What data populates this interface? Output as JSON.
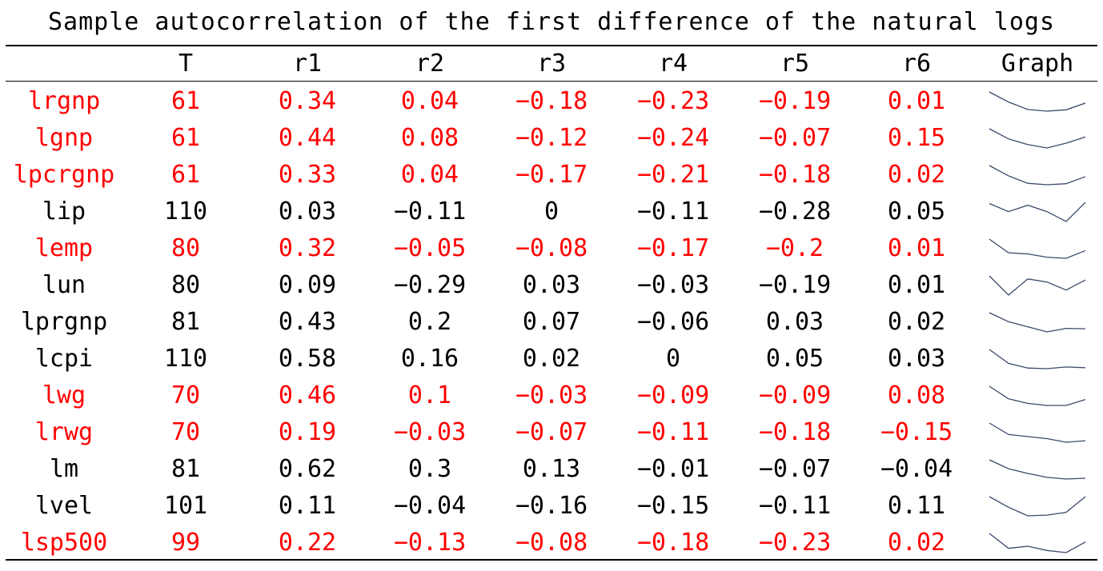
{
  "title": "Sample autocorrelation of the first difference of the natural logs",
  "colors": {
    "highlight": "#ff0000",
    "normal": "#000000",
    "sparkline": "#3a4a6b"
  },
  "columns": [
    "",
    "T",
    "r1",
    "r2",
    "r3",
    "r4",
    "r5",
    "r6",
    "Graph"
  ],
  "chart_data": {
    "type": "table",
    "title": "Sample autocorrelation of the first difference of the natural logs",
    "columns": [
      "T",
      "r1",
      "r2",
      "r3",
      "r4",
      "r5",
      "r6",
      "Graph"
    ],
    "rows": [
      {
        "label": "lrgnp",
        "T": "61",
        "values": [
          "0.34",
          "0.04",
          "−0.18",
          "−0.23",
          "−0.19",
          "0.01"
        ],
        "highlight": true
      },
      {
        "label": "lgnp",
        "T": "61",
        "values": [
          "0.44",
          "0.08",
          "−0.12",
          "−0.24",
          "−0.07",
          "0.15"
        ],
        "highlight": true
      },
      {
        "label": "lpcrgnp",
        "T": "61",
        "values": [
          "0.33",
          "0.04",
          "−0.17",
          "−0.21",
          "−0.18",
          "0.02"
        ],
        "highlight": true
      },
      {
        "label": "lip",
        "T": "110",
        "values": [
          "0.03",
          "−0.11",
          "0",
          "−0.11",
          "−0.28",
          "0.05"
        ],
        "highlight": false
      },
      {
        "label": "lemp",
        "T": "80",
        "values": [
          "0.32",
          "−0.05",
          "−0.08",
          "−0.17",
          "−0.2",
          "0.01"
        ],
        "highlight": true
      },
      {
        "label": "lun",
        "T": "80",
        "values": [
          "0.09",
          "−0.29",
          "0.03",
          "−0.03",
          "−0.19",
          "0.01"
        ],
        "highlight": false
      },
      {
        "label": "lprgnp",
        "T": "81",
        "values": [
          "0.43",
          "0.2",
          "0.07",
          "−0.06",
          "0.03",
          "0.02"
        ],
        "highlight": false
      },
      {
        "label": "lcpi",
        "T": "110",
        "values": [
          "0.58",
          "0.16",
          "0.02",
          "0",
          "0.05",
          "0.03"
        ],
        "highlight": false
      },
      {
        "label": "lwg",
        "T": "70",
        "values": [
          "0.46",
          "0.1",
          "−0.03",
          "−0.09",
          "−0.09",
          "0.08"
        ],
        "highlight": true
      },
      {
        "label": "lrwg",
        "T": "70",
        "values": [
          "0.19",
          "−0.03",
          "−0.07",
          "−0.11",
          "−0.18",
          "−0.15"
        ],
        "highlight": true
      },
      {
        "label": "lm",
        "T": "81",
        "values": [
          "0.62",
          "0.3",
          "0.13",
          "−0.01",
          "−0.07",
          "−0.04"
        ],
        "highlight": false
      },
      {
        "label": "lvel",
        "T": "101",
        "values": [
          "0.11",
          "−0.04",
          "−0.16",
          "−0.15",
          "−0.11",
          "0.11"
        ],
        "highlight": false
      },
      {
        "label": "lsp500",
        "T": "99",
        "values": [
          "0.22",
          "−0.13",
          "−0.08",
          "−0.18",
          "−0.23",
          "0.02"
        ],
        "highlight": true
      }
    ]
  }
}
